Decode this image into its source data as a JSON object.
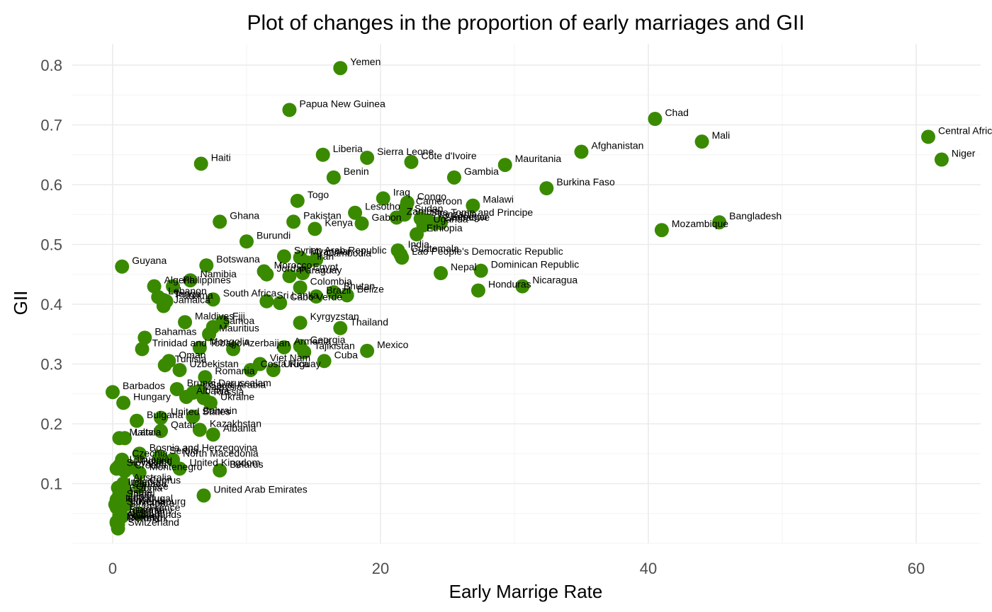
{
  "chart_data": {
    "type": "scatter",
    "title": "Plot of changes in the proportion of early marriages and GII",
    "xlabel": "Early Marrige Rate",
    "ylabel": "GII",
    "xlim": [
      -3,
      65
    ],
    "ylim": [
      0.0,
      0.82
    ],
    "x_ticks": [
      0,
      20,
      40,
      60
    ],
    "y_ticks": [
      0.1,
      0.2,
      0.3,
      0.4,
      0.5,
      0.6,
      0.7,
      0.8
    ],
    "grid": true,
    "point_color": "#3a8a00",
    "points": [
      {
        "label": "Yemen",
        "x": 17.0,
        "y": 0.795
      },
      {
        "label": "Papua New Guinea",
        "x": 13.2,
        "y": 0.725
      },
      {
        "label": "Chad",
        "x": 40.5,
        "y": 0.71
      },
      {
        "label": "Central African Republic",
        "x": 60.9,
        "y": 0.68
      },
      {
        "label": "Mali",
        "x": 44.0,
        "y": 0.672
      },
      {
        "label": "Afghanistan",
        "x": 35.0,
        "y": 0.655
      },
      {
        "label": "Liberia",
        "x": 15.7,
        "y": 0.65
      },
      {
        "label": "Sierra Leone",
        "x": 19.0,
        "y": 0.645
      },
      {
        "label": "Niger",
        "x": 61.9,
        "y": 0.642
      },
      {
        "label": "Côte d'Ivoire",
        "x": 22.3,
        "y": 0.638
      },
      {
        "label": "Haiti",
        "x": 6.6,
        "y": 0.635
      },
      {
        "label": "Mauritania",
        "x": 29.3,
        "y": 0.633
      },
      {
        "label": "Benin",
        "x": 16.5,
        "y": 0.612
      },
      {
        "label": "Gambia",
        "x": 25.5,
        "y": 0.612
      },
      {
        "label": "Burkina Faso",
        "x": 32.4,
        "y": 0.594
      },
      {
        "label": "Iraq",
        "x": 20.2,
        "y": 0.577
      },
      {
        "label": "Togo",
        "x": 13.8,
        "y": 0.573
      },
      {
        "label": "Congo",
        "x": 22.0,
        "y": 0.57
      },
      {
        "label": "Malawi",
        "x": 26.9,
        "y": 0.565
      },
      {
        "label": "Cameroon",
        "x": 21.9,
        "y": 0.562
      },
      {
        "label": "Lesotho",
        "x": 18.1,
        "y": 0.553
      },
      {
        "label": "Sudan",
        "x": 21.8,
        "y": 0.55
      },
      {
        "label": "Zambia",
        "x": 21.2,
        "y": 0.545
      },
      {
        "label": "Sao Tome and Principe",
        "x": 23.0,
        "y": 0.543
      },
      {
        "label": "Tanzania",
        "x": 23.5,
        "y": 0.54
      },
      {
        "label": "Senegal",
        "x": 24.5,
        "y": 0.536
      },
      {
        "label": "Ghana",
        "x": 8.0,
        "y": 0.538
      },
      {
        "label": "Pakistan",
        "x": 13.5,
        "y": 0.538
      },
      {
        "label": "Bangladesh",
        "x": 45.3,
        "y": 0.537
      },
      {
        "label": "Zimbabwe",
        "x": 24.0,
        "y": 0.535
      },
      {
        "label": "Gabon",
        "x": 18.6,
        "y": 0.535
      },
      {
        "label": "Uganda",
        "x": 23.2,
        "y": 0.532
      },
      {
        "label": "Kenya",
        "x": 15.1,
        "y": 0.526
      },
      {
        "label": "Mozambique",
        "x": 41.0,
        "y": 0.524
      },
      {
        "label": "Ethiopia",
        "x": 22.7,
        "y": 0.517
      },
      {
        "label": "Burundi",
        "x": 10.0,
        "y": 0.505
      },
      {
        "label": "India",
        "x": 21.3,
        "y": 0.49
      },
      {
        "label": "Guatemala",
        "x": 21.5,
        "y": 0.483
      },
      {
        "label": "Syrian Arab Republic",
        "x": 12.8,
        "y": 0.48
      },
      {
        "label": "Myanmar",
        "x": 14.0,
        "y": 0.478
      },
      {
        "label": "Cambodia",
        "x": 15.2,
        "y": 0.475
      },
      {
        "label": "Lao People's Democratic Republic",
        "x": 21.6,
        "y": 0.478
      },
      {
        "label": "Iran",
        "x": 14.5,
        "y": 0.47
      },
      {
        "label": "Botswana",
        "x": 7.0,
        "y": 0.465
      },
      {
        "label": "Guyana",
        "x": 0.7,
        "y": 0.463
      },
      {
        "label": "Nepal",
        "x": 24.5,
        "y": 0.452
      },
      {
        "label": "Dominican Republic",
        "x": 27.5,
        "y": 0.456
      },
      {
        "label": "Morocco",
        "x": 11.3,
        "y": 0.455
      },
      {
        "label": "Egypt",
        "x": 14.2,
        "y": 0.452
      },
      {
        "label": "Jordan",
        "x": 11.5,
        "y": 0.45
      },
      {
        "label": "Paraguay",
        "x": 13.2,
        "y": 0.447
      },
      {
        "label": "Namibia",
        "x": 5.8,
        "y": 0.44
      },
      {
        "label": "Algeria",
        "x": 3.1,
        "y": 0.43
      },
      {
        "label": "Philippines",
        "x": 4.5,
        "y": 0.43
      },
      {
        "label": "Nicaragua",
        "x": 30.6,
        "y": 0.43
      },
      {
        "label": "Colombia",
        "x": 14.0,
        "y": 0.428
      },
      {
        "label": "Honduras",
        "x": 27.3,
        "y": 0.423
      },
      {
        "label": "Bhutan",
        "x": 16.5,
        "y": 0.42
      },
      {
        "label": "Belize",
        "x": 17.5,
        "y": 0.415
      },
      {
        "label": "Brazil",
        "x": 15.2,
        "y": 0.413
      },
      {
        "label": "Lebanon",
        "x": 3.4,
        "y": 0.412
      },
      {
        "label": "Tonga",
        "x": 3.8,
        "y": 0.407
      },
      {
        "label": "Panama",
        "x": 4.0,
        "y": 0.405
      },
      {
        "label": "South Africa",
        "x": 7.5,
        "y": 0.408
      },
      {
        "label": "Sri Lanka",
        "x": 11.5,
        "y": 0.405
      },
      {
        "label": "Cabo Verde",
        "x": 12.5,
        "y": 0.402
      },
      {
        "label": "Jamaica",
        "x": 3.8,
        "y": 0.397
      },
      {
        "label": "Maldives",
        "x": 5.4,
        "y": 0.37
      },
      {
        "label": "Fiji",
        "x": 8.2,
        "y": 0.37
      },
      {
        "label": "Kyrgyzstan",
        "x": 14.0,
        "y": 0.369
      },
      {
        "label": "Samoa",
        "x": 7.5,
        "y": 0.362
      },
      {
        "label": "Thailand",
        "x": 17.0,
        "y": 0.36
      },
      {
        "label": "Mauritius",
        "x": 7.2,
        "y": 0.35
      },
      {
        "label": "Bahamas",
        "x": 2.4,
        "y": 0.344
      },
      {
        "label": "Trinidad and Tobago",
        "x": 2.2,
        "y": 0.325
      },
      {
        "label": "Mongolia",
        "x": 6.5,
        "y": 0.327
      },
      {
        "label": "Azerbaijan",
        "x": 9.0,
        "y": 0.325
      },
      {
        "label": "Georgia",
        "x": 14.0,
        "y": 0.33
      },
      {
        "label": "Armenia",
        "x": 12.8,
        "y": 0.328
      },
      {
        "label": "Tajikistan",
        "x": 14.3,
        "y": 0.32
      },
      {
        "label": "Mexico",
        "x": 19.0,
        "y": 0.322
      },
      {
        "label": "Oman",
        "x": 4.2,
        "y": 0.305
      },
      {
        "label": "Tunisia",
        "x": 3.9,
        "y": 0.298
      },
      {
        "label": "Cuba",
        "x": 15.8,
        "y": 0.305
      },
      {
        "label": "Viet Nam",
        "x": 11.0,
        "y": 0.3
      },
      {
        "label": "Uzbekistan",
        "x": 5.0,
        "y": 0.29
      },
      {
        "label": "Costa Rica",
        "x": 10.3,
        "y": 0.29
      },
      {
        "label": "Uruguay",
        "x": 12.0,
        "y": 0.29
      },
      {
        "label": "Romania",
        "x": 6.9,
        "y": 0.278
      },
      {
        "label": "Barbados",
        "x": 0.0,
        "y": 0.253
      },
      {
        "label": "Brunei Darussalam",
        "x": 4.8,
        "y": 0.258
      },
      {
        "label": "Saudi Arabia",
        "x": 6.5,
        "y": 0.255
      },
      {
        "label": "Malaysia",
        "x": 6.0,
        "y": 0.252
      },
      {
        "label": "Albania",
        "x": 5.5,
        "y": 0.245
      },
      {
        "label": "Russia",
        "x": 6.8,
        "y": 0.243
      },
      {
        "label": "Hungary",
        "x": 0.8,
        "y": 0.235
      },
      {
        "label": "Ukraine",
        "x": 7.3,
        "y": 0.235
      },
      {
        "label": "Bahrain",
        "x": 6.0,
        "y": 0.212
      },
      {
        "label": "United States",
        "x": 3.6,
        "y": 0.21
      },
      {
        "label": "Bulgaria",
        "x": 1.8,
        "y": 0.205
      },
      {
        "label": "Kazakhstan",
        "x": 6.5,
        "y": 0.19
      },
      {
        "label": "Qatar",
        "x": 3.6,
        "y": 0.188
      },
      {
        "label": "Albania",
        "x": 7.5,
        "y": 0.182
      },
      {
        "label": "Malta",
        "x": 0.5,
        "y": 0.176
      },
      {
        "label": "Latvia",
        "x": 0.9,
        "y": 0.176
      },
      {
        "label": "Bosnia and Herzegovina",
        "x": 2.0,
        "y": 0.15
      },
      {
        "label": "Serbia",
        "x": 3.5,
        "y": 0.145
      },
      {
        "label": "North Macedonia",
        "x": 4.5,
        "y": 0.14
      },
      {
        "label": "Czechia",
        "x": 0.7,
        "y": 0.14
      },
      {
        "label": "Lithuania",
        "x": 0.5,
        "y": 0.13
      },
      {
        "label": "Poland",
        "x": 1.4,
        "y": 0.127
      },
      {
        "label": "United Kingdom",
        "x": 5.0,
        "y": 0.125
      },
      {
        "label": "Belarus",
        "x": 8.0,
        "y": 0.122
      },
      {
        "label": "Croatia",
        "x": 0.9,
        "y": 0.121
      },
      {
        "label": "Montenegro",
        "x": 2.0,
        "y": 0.118
      },
      {
        "label": "Slovakia",
        "x": 0.3,
        "y": 0.125
      },
      {
        "label": "Australia",
        "x": 0.8,
        "y": 0.1
      },
      {
        "label": "Cyprus",
        "x": 2.0,
        "y": 0.095
      },
      {
        "label": "Ireland",
        "x": 0.4,
        "y": 0.093
      },
      {
        "label": "Canada",
        "x": 0.7,
        "y": 0.09
      },
      {
        "label": "Greece",
        "x": 1.0,
        "y": 0.085
      },
      {
        "label": "Estonia",
        "x": 0.5,
        "y": 0.082
      },
      {
        "label": "United Arab Emirates",
        "x": 6.8,
        "y": 0.08
      },
      {
        "label": "Israel",
        "x": 0.6,
        "y": 0.075
      },
      {
        "label": "Spain",
        "x": 0.3,
        "y": 0.073
      },
      {
        "label": "Japan",
        "x": 0.4,
        "y": 0.068
      },
      {
        "label": "Portugal",
        "x": 1.0,
        "y": 0.065
      },
      {
        "label": "Luxembourg",
        "x": 0.6,
        "y": 0.06
      },
      {
        "label": "Singapore",
        "x": 0.5,
        "y": 0.057
      },
      {
        "label": "Italy",
        "x": 0.2,
        "y": 0.065
      },
      {
        "label": "Slovenia",
        "x": 0.3,
        "y": 0.06
      },
      {
        "label": "France",
        "x": 2.0,
        "y": 0.05
      },
      {
        "label": "Finland",
        "x": 0.5,
        "y": 0.047
      },
      {
        "label": "Germany",
        "x": 0.7,
        "y": 0.045
      },
      {
        "label": "Belgium",
        "x": 0.5,
        "y": 0.042
      },
      {
        "label": "Netherlands",
        "x": 0.4,
        "y": 0.038
      },
      {
        "label": "Sweden",
        "x": 0.3,
        "y": 0.036
      },
      {
        "label": "Norway",
        "x": 0.3,
        "y": 0.034
      },
      {
        "label": "Denmark",
        "x": 0.4,
        "y": 0.032
      },
      {
        "label": "Switzerland",
        "x": 0.4,
        "y": 0.025
      }
    ]
  }
}
